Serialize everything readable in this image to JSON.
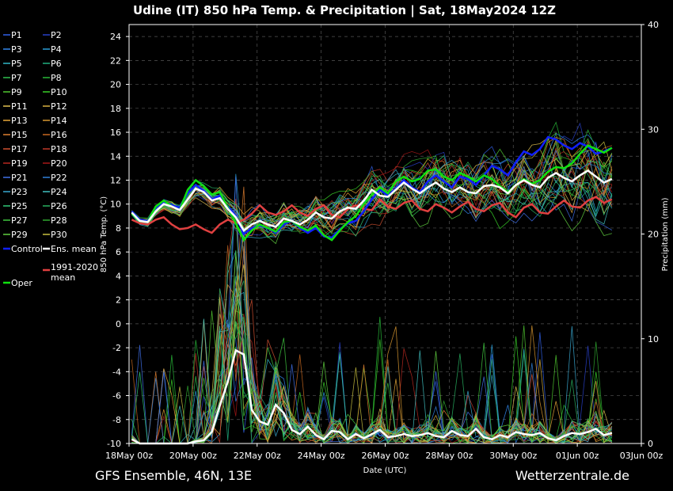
{
  "chart_data": {
    "type": "line",
    "title": "Udine  (IT)  850 hPa Temp. & Precipitation | Sat, 18May2024 12Z",
    "xlabel": "Date (UTC)",
    "ylabel": "850 hPa Temp. (°C)",
    "y2label": "Precipitation (mm)",
    "ylim": [
      -10,
      25
    ],
    "y2lim": [
      0,
      40
    ],
    "yticks": [
      -10,
      -8,
      -6,
      -4,
      -2,
      0,
      2,
      4,
      6,
      8,
      10,
      12,
      14,
      16,
      18,
      20,
      22,
      24
    ],
    "y2ticks": [
      0,
      10,
      20,
      30,
      40
    ],
    "xlim_hours": [
      0,
      384
    ],
    "xticks": [
      {
        "hours": 0,
        "label": "18May 00z"
      },
      {
        "hours": 48,
        "label": "20May 00z"
      },
      {
        "hours": 96,
        "label": "22May 00z"
      },
      {
        "hours": 144,
        "label": "24May 00z"
      },
      {
        "hours": 192,
        "label": "26May 00z"
      },
      {
        "hours": 240,
        "label": "28May 00z"
      },
      {
        "hours": 288,
        "label": "30May 00z"
      },
      {
        "hours": 336,
        "label": "01Jun 00z"
      },
      {
        "hours": 384,
        "label": "03Jun 00z"
      }
    ],
    "start_hour": 2,
    "step_hours": 6,
    "ens_mean_temp": [
      9.3,
      8.6,
      8.5,
      9.4,
      10.0,
      9.8,
      9.5,
      10.4,
      11.3,
      11.0,
      10.3,
      10.5,
      9.6,
      8.9,
      7.8,
      8.3,
      8.6,
      8.3,
      8.1,
      8.8,
      8.6,
      8.3,
      8.7,
      9.3,
      8.9,
      8.8,
      9.4,
      9.7,
      9.6,
      10.3,
      11.2,
      10.7,
      10.6,
      11.2,
      11.8,
      11.3,
      10.9,
      11.4,
      11.8,
      11.3,
      11.0,
      11.4,
      11.0,
      10.9,
      11.5,
      11.6,
      11.4,
      10.9,
      11.6,
      12.0,
      11.6,
      11.4,
      12.2,
      12.6,
      12.2,
      11.9,
      12.4,
      12.8,
      12.3,
      11.8,
      12.1
    ],
    "climate_mean_temp": [
      8.7,
      8.4,
      8.3,
      8.7,
      8.9,
      8.3,
      7.9,
      8.0,
      8.3,
      7.9,
      7.6,
      8.3,
      8.7,
      8.4,
      8.7,
      9.2,
      9.9,
      9.3,
      9.1,
      9.4,
      9.9,
      9.3,
      9.0,
      9.6,
      9.9,
      9.1,
      8.9,
      9.6,
      9.9,
      9.6,
      9.5,
      10.4,
      9.8,
      9.6,
      10.1,
      10.3,
      9.6,
      9.4,
      10.0,
      9.7,
      9.3,
      9.8,
      10.2,
      9.6,
      9.4,
      9.9,
      10.1,
      9.3,
      8.9,
      9.7,
      10.0,
      9.3,
      9.2,
      9.8,
      10.3,
      9.8,
      9.7,
      10.3,
      10.6,
      10.1,
      10.4
    ],
    "control_temp": [
      9.4,
      8.7,
      8.6,
      9.7,
      10.2,
      9.9,
      9.7,
      10.9,
      11.6,
      11.1,
      10.4,
      10.7,
      9.8,
      9.0,
      7.5,
      8.0,
      8.2,
      8.0,
      7.6,
      8.3,
      8.6,
      8.0,
      7.6,
      8.0,
      7.3,
      7.2,
      7.9,
      8.4,
      8.6,
      9.4,
      10.4,
      11.2,
      10.7,
      11.3,
      12.0,
      11.4,
      11.0,
      11.9,
      12.4,
      11.9,
      11.4,
      12.3,
      12.1,
      11.6,
      12.4,
      13.2,
      12.9,
      12.4,
      13.5,
      14.4,
      14.1,
      14.6,
      15.6,
      15.4,
      14.9,
      14.6,
      15.1,
      14.8,
      14.2,
      14.4,
      14.7
    ],
    "oper_temp": [
      9.2,
      8.6,
      8.5,
      9.8,
      10.3,
      9.8,
      9.5,
      11.2,
      12.0,
      11.5,
      10.8,
      11.0,
      9.7,
      8.4,
      7.0,
      7.8,
      8.3,
      8.0,
      7.7,
      8.5,
      8.6,
      8.1,
      7.8,
      8.2,
      7.4,
      7.0,
      7.8,
      8.5,
      9.0,
      10.0,
      10.8,
      11.4,
      10.9,
      11.9,
      12.3,
      11.9,
      12.1,
      12.8,
      12.9,
      12.3,
      12.0,
      12.6,
      12.3,
      11.9,
      12.4,
      12.1,
      11.5,
      11.0,
      11.6,
      12.1,
      11.7,
      12.0,
      12.7,
      13.1,
      13.0,
      13.4,
      14.2,
      14.9,
      14.6,
      14.3,
      14.7
    ],
    "ens_mean_precip": [
      0.4,
      0,
      0,
      0,
      0,
      0,
      0,
      0,
      0.2,
      0.3,
      1.1,
      3.6,
      5.9,
      8.9,
      8.5,
      3.2,
      2.1,
      1.8,
      3.7,
      2.9,
      1.3,
      0.9,
      1.6,
      0.8,
      0.4,
      1.2,
      1.1,
      0.4,
      0.9,
      0.5,
      0.9,
      1.3,
      0.6,
      0.7,
      0.9,
      0.7,
      0.8,
      1.0,
      0.7,
      0.6,
      1.2,
      0.8,
      0.7,
      1.4,
      0.6,
      0.4,
      0.8,
      0.6,
      1.1,
      0.9,
      0.8,
      1.0,
      0.5,
      0.3,
      0.7,
      1.0,
      0.9,
      1.1,
      1.4,
      0.8,
      1.0
    ],
    "legend": [
      {
        "label": "P1",
        "color": "#3060e8"
      },
      {
        "label": "P2",
        "color": "#2840c8"
      },
      {
        "label": "P3",
        "color": "#3388ee"
      },
      {
        "label": "P4",
        "color": "#2a9fd8"
      },
      {
        "label": "P5",
        "color": "#30b8c8"
      },
      {
        "label": "P6",
        "color": "#20b080"
      },
      {
        "label": "P7",
        "color": "#30c050"
      },
      {
        "label": "P8",
        "color": "#28b838"
      },
      {
        "label": "P9",
        "color": "#50c830"
      },
      {
        "label": "P10",
        "color": "#38d028"
      },
      {
        "label": "P11",
        "color": "#e0c050"
      },
      {
        "label": "P12",
        "color": "#d8b040"
      },
      {
        "label": "P13",
        "color": "#e8a838"
      },
      {
        "label": "P14",
        "color": "#d89830"
      },
      {
        "label": "P15",
        "color": "#e08030"
      },
      {
        "label": "P16",
        "color": "#c86820"
      },
      {
        "label": "P17",
        "color": "#d05030"
      },
      {
        "label": "P18",
        "color": "#c03828"
      },
      {
        "label": "P19",
        "color": "#b82820"
      },
      {
        "label": "P20",
        "color": "#a81818"
      },
      {
        "label": "P21",
        "color": "#4070e8"
      },
      {
        "label": "P22",
        "color": "#3080d8"
      },
      {
        "label": "P23",
        "color": "#38a8d0"
      },
      {
        "label": "P24",
        "color": "#40c0c0"
      },
      {
        "label": "P25",
        "color": "#30c878"
      },
      {
        "label": "P26",
        "color": "#28b060"
      },
      {
        "label": "P27",
        "color": "#40c840"
      },
      {
        "label": "P28",
        "color": "#30a830"
      },
      {
        "label": "P29",
        "color": "#60d040"
      },
      {
        "label": "P30",
        "color": "#c8c040"
      },
      {
        "label": "Control",
        "color": "#1020ff"
      },
      {
        "label": "Ens. mean",
        "color": "#ffffff"
      },
      {
        "label": "1991-2020 mean",
        "color": "#e04040"
      },
      {
        "label": "Oper",
        "color": "#10e010"
      }
    ]
  },
  "footer": {
    "left": "GFS Ensemble, 46N, 13E",
    "right": "Wetterzentrale.de"
  },
  "colors": {
    "background": "#000000",
    "grid": "#555555",
    "text": "#ffffff"
  }
}
